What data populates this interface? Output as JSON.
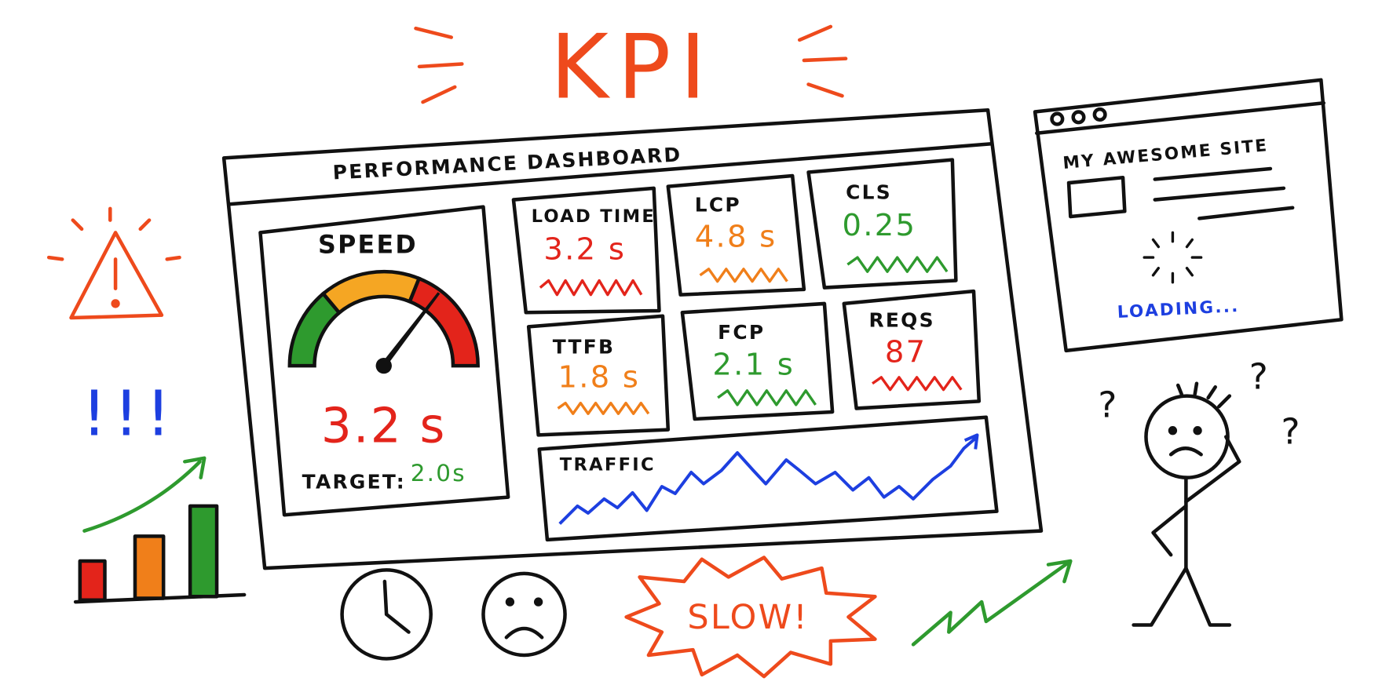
{
  "title": "KPI",
  "dashboard": {
    "title": "PERFORMANCE  DASHBOARD",
    "speed": {
      "label": "SPEED",
      "value": "3.2 s",
      "target_label": "TARGET:",
      "target_value": "2.0s"
    },
    "tiles": [
      {
        "label": "LOAD TIME",
        "value": "3.2 s"
      },
      {
        "label": "LCP",
        "value": "4.8 s"
      },
      {
        "label": "CLS",
        "value": "0.25"
      },
      {
        "label": "TTFB",
        "value": "1.8 s"
      },
      {
        "label": "FCP",
        "value": "2.1 s"
      },
      {
        "label": "REQS",
        "value": "87"
      }
    ],
    "traffic": {
      "label": "TRAFFIC"
    }
  },
  "browser": {
    "title": "MY AWESOME SITE",
    "status": "LOADING..."
  },
  "alert": "!!!",
  "badge": "SLOW!",
  "questions": [
    "?",
    "?",
    "?"
  ]
}
